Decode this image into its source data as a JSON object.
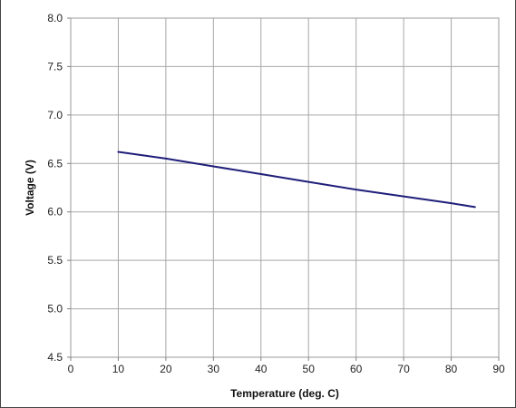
{
  "chart_data": {
    "type": "line",
    "title": "",
    "xlabel": "Temperature (deg. C)",
    "ylabel": "Voltage (V)",
    "xlim": [
      0,
      90
    ],
    "ylim": [
      4.5,
      8.0
    ],
    "x_ticks": [
      "0",
      "10",
      "20",
      "30",
      "40",
      "50",
      "60",
      "70",
      "80",
      "90"
    ],
    "y_ticks": [
      "4.5",
      "5.0",
      "5.5",
      "6.0",
      "6.5",
      "7.0",
      "7.5",
      "8.0"
    ],
    "grid": true,
    "legend": "none",
    "series": [
      {
        "color": "#1f1f7a",
        "x": [
          10,
          20,
          30,
          40,
          50,
          60,
          70,
          80,
          85
        ],
        "y": [
          6.62,
          6.55,
          6.47,
          6.39,
          6.31,
          6.23,
          6.16,
          6.09,
          6.05
        ]
      }
    ]
  }
}
